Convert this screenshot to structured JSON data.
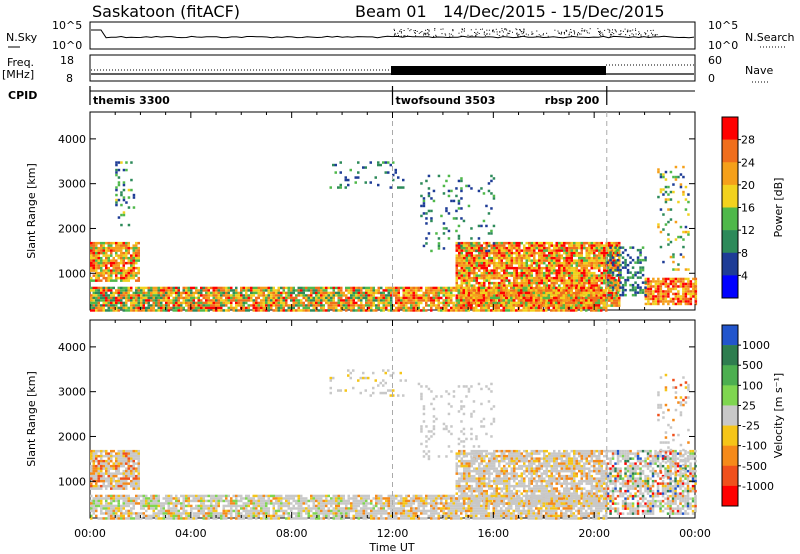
{
  "header": {
    "station": "Saskatoon (fitACF)",
    "beam": "Beam 01",
    "date_range": "14/Dec/2015 - 15/Dec/2015"
  },
  "top_panels": {
    "nsky_label": "N.Sky",
    "nsearch_label": "N.Search",
    "noise_ticks": [
      "10^5",
      "10^0"
    ],
    "freq_label_1": "Freq.",
    "freq_label_2": "[MHz]",
    "freq_ticks": [
      "18",
      "8"
    ],
    "nave_label": "Nave",
    "nave_ticks": [
      "60",
      "0"
    ],
    "cpid_label": "CPID"
  },
  "cpid_segments": [
    {
      "name": "themis 3300",
      "start_h": 0,
      "end_h": 12
    },
    {
      "name": "twofsound 3503",
      "start_h": 12,
      "end_h": 20.5
    },
    {
      "name": "rbsp 200",
      "start_h": 20.5,
      "end_h": 24
    }
  ],
  "chart_data": [
    {
      "type": "heatmap",
      "title": "Power",
      "xlabel": "Time UT",
      "ylabel": "Slant Range [km]",
      "xlim_hours": [
        0,
        24
      ],
      "x_ticks": [
        "00:00",
        "04:00",
        "08:00",
        "12:00",
        "16:00",
        "20:00",
        "00:00"
      ],
      "ylim": [
        180,
        4600
      ],
      "y_ticks": [
        1000,
        2000,
        3000,
        4000
      ],
      "colorbar_label": "Power [dB]",
      "colorbar_ticks": [
        4,
        8,
        12,
        16,
        20,
        24,
        28
      ],
      "colorbar_range": [
        0,
        32
      ],
      "colors": [
        "#0000ff",
        "#1e3c96",
        "#2d8a5a",
        "#4fb84a",
        "#f2d21e",
        "#f5a01a",
        "#f06e1c",
        "#ff0000"
      ],
      "scatter_regions": [
        {
          "t0": 0.0,
          "t1": 1.9,
          "r0": 850,
          "r1": 1700,
          "density": 0.85,
          "values": [
            14,
            30
          ]
        },
        {
          "t0": 1.0,
          "t1": 1.7,
          "r0": 2100,
          "r1": 3500,
          "density": 0.2,
          "values": [
            4,
            18
          ]
        },
        {
          "t0": 0.0,
          "t1": 12.0,
          "r0": 190,
          "r1": 700,
          "density": 0.9,
          "values": [
            8,
            30
          ]
        },
        {
          "t0": 9.5,
          "t1": 12.5,
          "r0": 2900,
          "r1": 3500,
          "density": 0.12,
          "values": [
            4,
            14
          ]
        },
        {
          "t0": 14.5,
          "t1": 21.0,
          "r0": 300,
          "r1": 1700,
          "density": 0.9,
          "values": [
            14,
            32
          ]
        },
        {
          "t0": 12.0,
          "t1": 20.5,
          "r0": 190,
          "r1": 700,
          "density": 0.85,
          "values": [
            14,
            30
          ]
        },
        {
          "t0": 13.0,
          "t1": 16.0,
          "r0": 1500,
          "r1": 3200,
          "density": 0.12,
          "values": [
            4,
            14
          ]
        },
        {
          "t0": 22.0,
          "t1": 24.0,
          "r0": 300,
          "r1": 900,
          "density": 0.85,
          "values": [
            16,
            32
          ]
        },
        {
          "t0": 22.5,
          "t1": 23.7,
          "r0": 1100,
          "r1": 3400,
          "density": 0.15,
          "values": [
            4,
            24
          ]
        },
        {
          "t0": 20.5,
          "t1": 22.0,
          "r0": 500,
          "r1": 1600,
          "density": 0.4,
          "values": [
            4,
            14
          ]
        }
      ]
    },
    {
      "type": "heatmap",
      "title": "Velocity",
      "xlabel": "Time UT",
      "ylabel": "Slant Range [km]",
      "xlim_hours": [
        0,
        24
      ],
      "x_ticks": [
        "00:00",
        "04:00",
        "08:00",
        "12:00",
        "16:00",
        "20:00",
        "00:00"
      ],
      "ylim": [
        180,
        4600
      ],
      "y_ticks": [
        1000,
        2000,
        3000,
        4000
      ],
      "colorbar_label": "Velocity [m s⁻¹]",
      "colorbar_ticks": [
        "1000",
        "500",
        "100",
        "25",
        "-25",
        "-100",
        "-500",
        "-1000"
      ],
      "colors": [
        "#2255cc",
        "#2e7d4f",
        "#4caf50",
        "#7fd650",
        "#c8c8c8",
        "#f5c518",
        "#f58a1a",
        "#f0501c",
        "#ff0000"
      ],
      "scatter_regions": [
        {
          "t0": 0.0,
          "t1": 1.9,
          "r0": 850,
          "r1": 1700,
          "density": 0.85,
          "color_index": [
            5,
            7
          ]
        },
        {
          "t0": 0.0,
          "t1": 12.0,
          "r0": 190,
          "r1": 700,
          "density": 0.8,
          "color_index": [
            3,
            6
          ]
        },
        {
          "t0": 9.5,
          "t1": 12.5,
          "r0": 2900,
          "r1": 3500,
          "density": 0.12,
          "color_index": [
            4,
            5
          ]
        },
        {
          "t0": 12.0,
          "t1": 20.5,
          "r0": 190,
          "r1": 700,
          "density": 0.85,
          "color_index": [
            4,
            6
          ]
        },
        {
          "t0": 14.5,
          "t1": 20.5,
          "r0": 500,
          "r1": 1700,
          "density": 0.8,
          "color_index": [
            4,
            6
          ]
        },
        {
          "t0": 13.0,
          "t1": 16.0,
          "r0": 1500,
          "r1": 3200,
          "density": 0.12,
          "color_index": [
            4,
            4
          ]
        },
        {
          "t0": 20.5,
          "t1": 24.0,
          "r0": 300,
          "r1": 1700,
          "density": 0.7,
          "color_index": [
            0,
            8
          ]
        },
        {
          "t0": 22.5,
          "t1": 23.7,
          "r0": 1100,
          "r1": 3400,
          "density": 0.15,
          "color_index": [
            4,
            7
          ]
        }
      ]
    }
  ]
}
